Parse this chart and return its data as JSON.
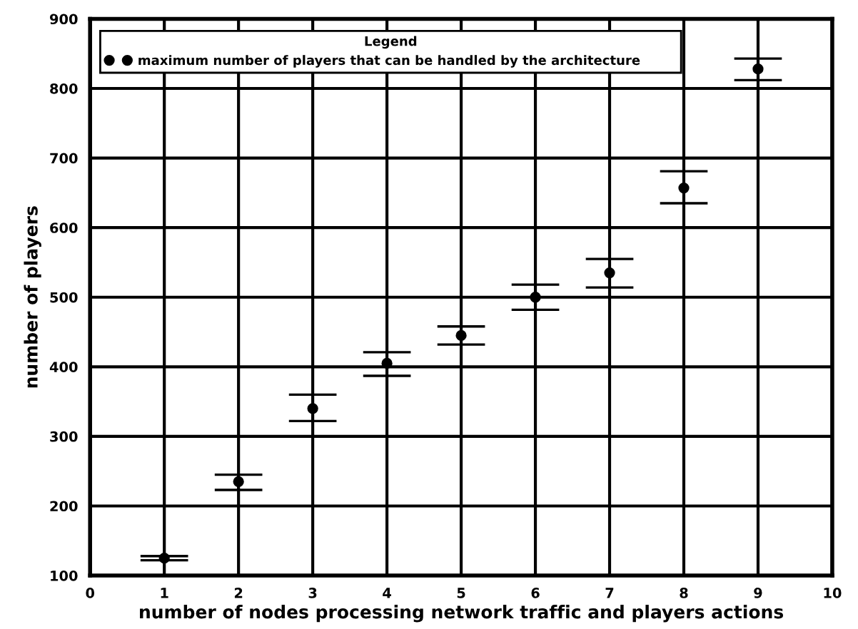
{
  "chart_data": {
    "type": "scatter",
    "xlabel": "number of nodes processing network traffic and players actions",
    "ylabel": "number of players",
    "legend_title": "Legend",
    "x": [
      1,
      2,
      3,
      4,
      5,
      6,
      7,
      8,
      9
    ],
    "series": [
      {
        "name": "maximum number of players that can be handled by the architecture",
        "color": "#000000",
        "values": [
          125,
          235,
          340,
          405,
          445,
          500,
          535,
          657,
          828
        ],
        "errors": [
          [
            122,
            128
          ],
          [
            223,
            245
          ],
          [
            322,
            360
          ],
          [
            387,
            421
          ],
          [
            432,
            458
          ],
          [
            482,
            518
          ],
          [
            514,
            555
          ],
          [
            635,
            681
          ],
          [
            812,
            843
          ]
        ]
      }
    ],
    "xlim": [
      0,
      10
    ],
    "xticks": [
      0,
      1,
      2,
      3,
      4,
      5,
      6,
      7,
      8,
      9,
      10
    ],
    "ylim": [
      100,
      900
    ],
    "yticks": [
      100,
      200,
      300,
      400,
      500,
      600,
      700,
      800,
      900
    ],
    "grid": true,
    "legend": "top",
    "marker": "circle"
  }
}
